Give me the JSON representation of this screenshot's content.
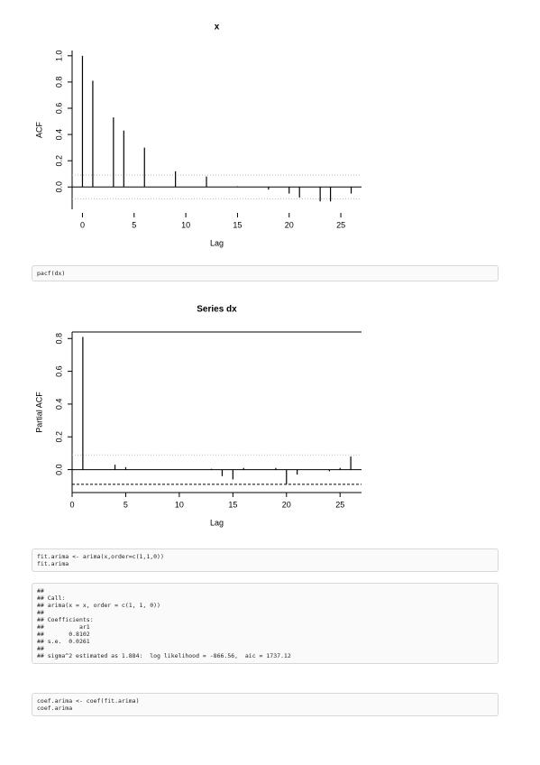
{
  "chart_data": [
    {
      "type": "bar",
      "title": "x",
      "xlabel": "Lag",
      "ylabel": "ACF",
      "color": "#000000",
      "x": [
        0,
        1,
        3,
        4,
        6,
        9,
        12,
        15,
        18,
        20,
        21,
        23,
        24,
        26
      ],
      "values": [
        1.0,
        0.81,
        0.53,
        0.43,
        0.3,
        0.12,
        0.08,
        0.005,
        -0.02,
        -0.05,
        -0.08,
        -0.11,
        -0.11,
        -0.05
      ],
      "ci": 0.09,
      "xlim": [
        -1,
        27
      ],
      "xticks": [
        0,
        5,
        10,
        15,
        20,
        25
      ],
      "ylim": [
        -0.17,
        1.04
      ],
      "yticks": [
        {
          "value": 0,
          "label": "0.0"
        },
        {
          "value": 0.2,
          "label": "0.2"
        },
        {
          "value": 0.4,
          "label": "0.4"
        },
        {
          "value": 0.6,
          "label": "0.6"
        },
        {
          "value": 0.8,
          "label": "0.8"
        },
        {
          "value": 1,
          "label": "1.0"
        }
      ]
    },
    {
      "type": "bar",
      "title": "Series  dx",
      "xlabel": "Lag",
      "ylabel": "Partial ACF",
      "color": "#000000",
      "frame": true,
      "x": [
        1,
        4,
        5,
        13,
        14,
        15,
        16,
        19,
        20,
        21,
        24,
        25,
        26
      ],
      "values": [
        0.81,
        0.03,
        0.015,
        0.005,
        -0.04,
        -0.06,
        0.01,
        0.01,
        -0.09,
        -0.03,
        -0.01,
        0.01,
        0.08
      ],
      "ci": 0.09,
      "xlim": [
        0,
        27
      ],
      "xticks": [
        0,
        5,
        10,
        15,
        20,
        25
      ],
      "ylim": [
        -0.14,
        0.84
      ],
      "yticks": [
        {
          "value": 0,
          "label": "0.0"
        },
        {
          "value": 0.2,
          "label": "0.2"
        },
        {
          "value": 0.4,
          "label": "0.4"
        },
        {
          "value": 0.6,
          "label": "0.6"
        },
        {
          "value": 0.8,
          "label": "0.8"
        }
      ]
    }
  ],
  "code_blocks": [
    {
      "lines": [
        "pacf(dx)"
      ]
    },
    {
      "lines": [
        "fit.arima <- arima(x,order=c(1,1,0))",
        "fit.arima"
      ]
    },
    {
      "lines": [
        "##",
        "## Call:",
        "## arima(x = x, order = c(1, 1, 0))",
        "##",
        "## Coefficients:",
        "##          ar1",
        "##       0.8102",
        "## s.e.  0.0261",
        "##",
        "## sigma^2 estimated as 1.884:  log likelihood = -866.56,  aic = 1737.12"
      ]
    },
    {
      "lines": [
        "coef.arima <- coef(fit.arima)",
        "coef.arima"
      ]
    }
  ]
}
